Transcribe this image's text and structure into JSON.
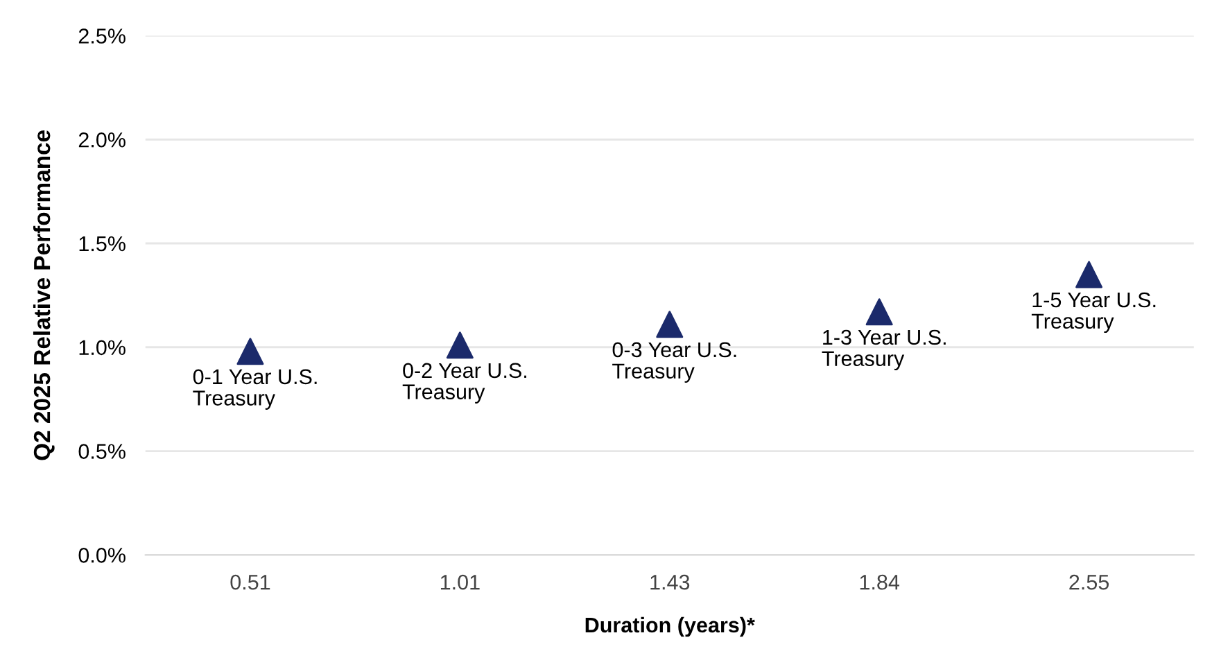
{
  "chart_data": {
    "type": "scatter",
    "xlabel": "Duration (years)*",
    "ylabel": "Q2 2025 Relative Performance",
    "categories": [
      "0.51",
      "1.01",
      "1.43",
      "1.84",
      "2.55"
    ],
    "series": [
      {
        "color": "#1b2a6b",
        "values": [
          0.98,
          1.01,
          1.11,
          1.17,
          1.35
        ]
      }
    ],
    "marker": "triangle",
    "ylim": [
      0,
      2.5
    ],
    "yticks": [
      {
        "value": 0,
        "label": "0.0%"
      },
      {
        "value": 0.5,
        "label": "0.5%"
      },
      {
        "value": 1.0,
        "label": "1.0%"
      },
      {
        "value": 1.5,
        "label": "1.5%"
      },
      {
        "value": 2.0,
        "label": "2.0%"
      },
      {
        "value": 2.5,
        "label": "2.5%"
      }
    ],
    "grid": "y",
    "annotations": [
      {
        "text": "0-1 Year U.S.\nTreasury",
        "x": "0.51",
        "y": 0.98
      },
      {
        "text": "0-2 Year U.S.\nTreasury",
        "x": "1.01",
        "y": 1.01
      },
      {
        "text": "0-3 Year U.S.\nTreasury",
        "x": "1.43",
        "y": 1.11
      },
      {
        "text": "1-3 Year U.S.\nTreasury",
        "x": "1.84",
        "y": 1.17
      },
      {
        "text": "1-5 Year U.S.\nTreasury",
        "x": "2.55",
        "y": 1.35
      }
    ]
  }
}
